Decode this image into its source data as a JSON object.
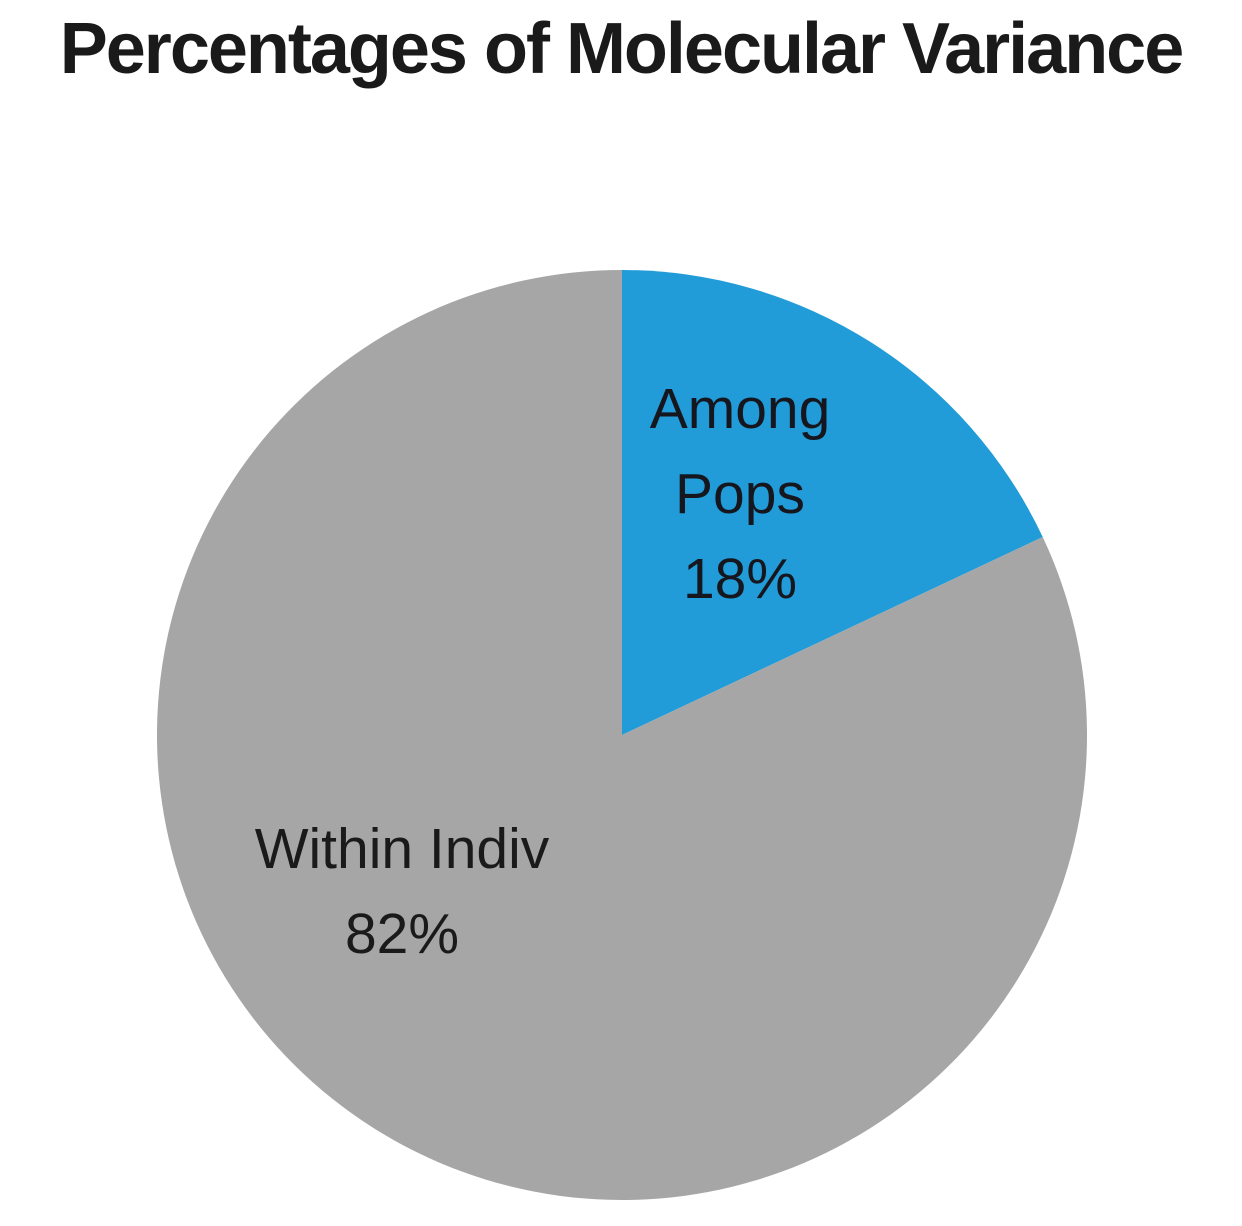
{
  "chart_data": {
    "type": "pie",
    "title": "Percentages of Molecular Variance",
    "legend": "none",
    "labels_inside": true,
    "start_angle_deg": 0,
    "direction": "clockwise",
    "slices": [
      {
        "label": "Among Pops",
        "label_lines": [
          "Among",
          "Pops"
        ],
        "value": 18,
        "pct_label": "18%",
        "color": "#219CD8"
      },
      {
        "label": "Within Indiv",
        "label_lines": [
          "Within Indiv"
        ],
        "value": 82,
        "pct_label": "82%",
        "color": "#A6A6A6"
      }
    ],
    "colors": {
      "title_text": "#1a1a1a",
      "label_text": "#16161e",
      "background": "#ffffff"
    }
  }
}
